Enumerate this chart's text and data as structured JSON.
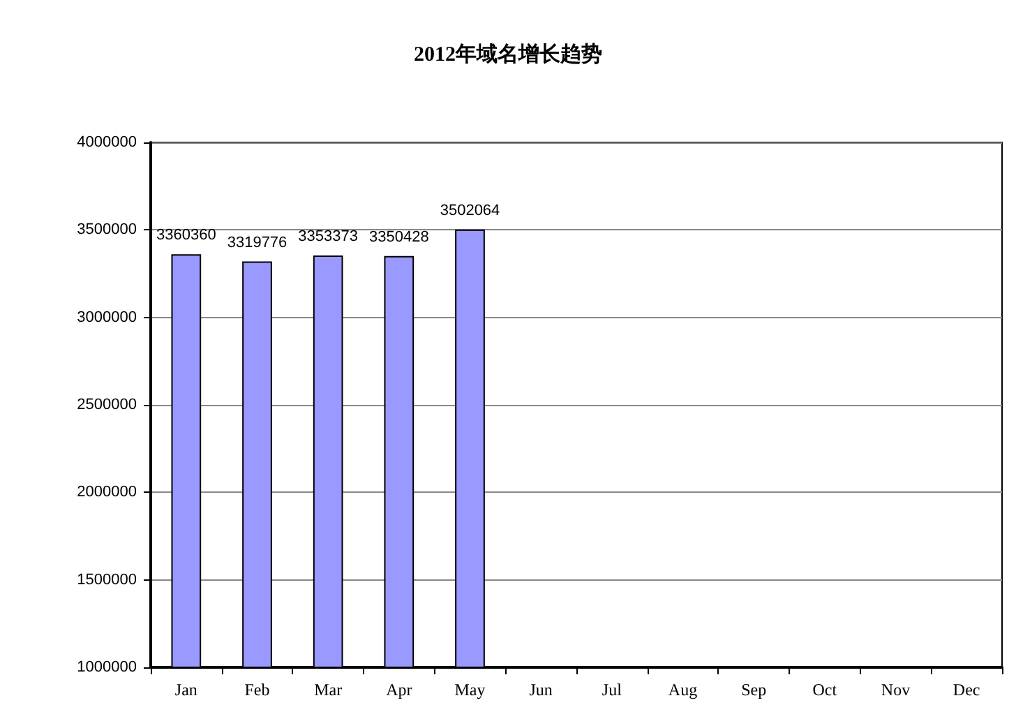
{
  "chart_data": {
    "type": "bar",
    "title": "2012年域名增长趋势",
    "categories": [
      "Jan",
      "Feb",
      "Mar",
      "Apr",
      "May",
      "Jun",
      "Jul",
      "Aug",
      "Sep",
      "Oct",
      "Nov",
      "Dec"
    ],
    "values": [
      3360360,
      3319776,
      3353373,
      3350428,
      3502064,
      null,
      null,
      null,
      null,
      null,
      null,
      null
    ],
    "color": "#9999ff",
    "ylim": [
      1000000,
      4000000
    ],
    "yticks": [
      1000000,
      1500000,
      2000000,
      2500000,
      3000000,
      3500000,
      4000000
    ],
    "grid": "y",
    "data_labels": true
  }
}
